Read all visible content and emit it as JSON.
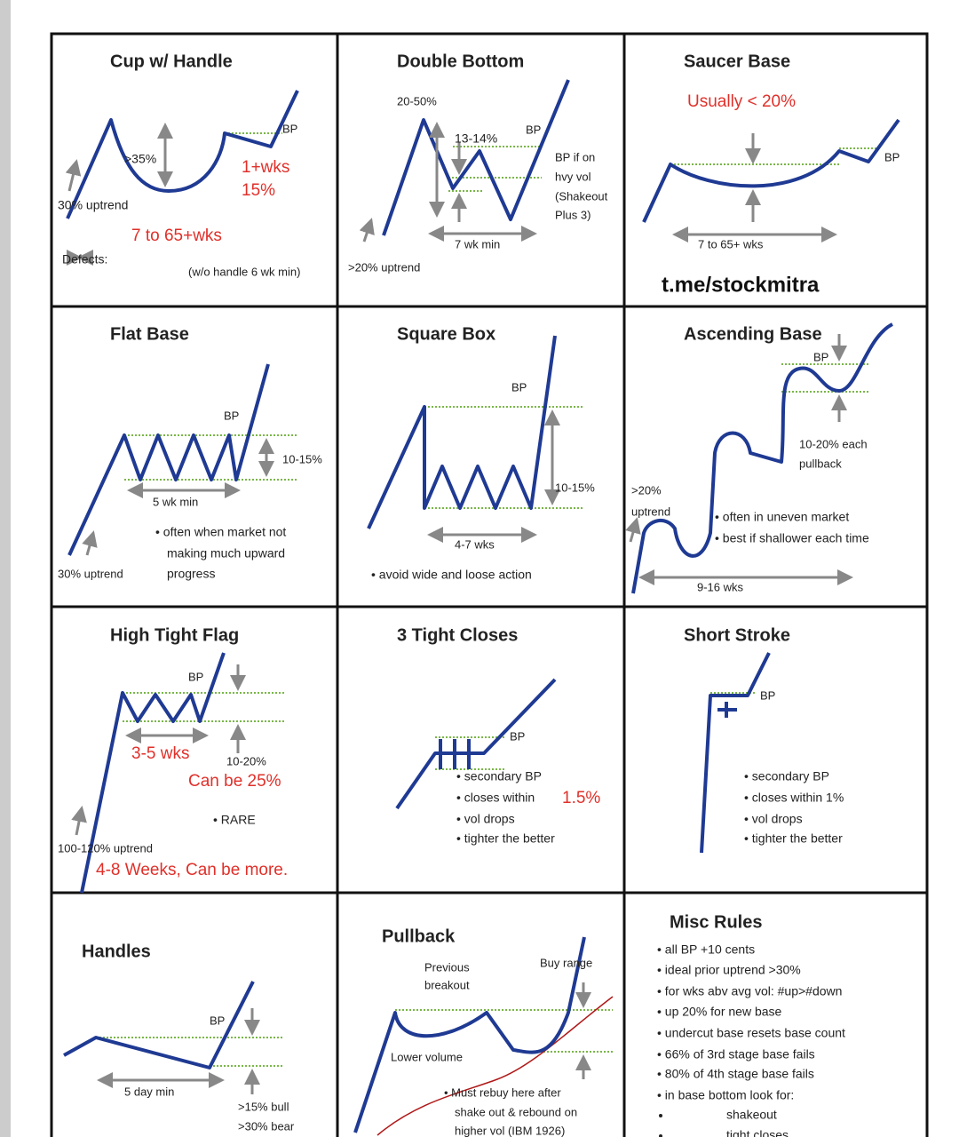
{
  "watermark": "t.me/stockmitra",
  "cells": [
    {
      "title": "Cup w/ Handle",
      "labels": [
        "BP",
        ">35%",
        "1+wks",
        "15%",
        "30% uptrend",
        "7 to 65+wks",
        "Defects:",
        "(w/o handle 6 wk min)"
      ]
    },
    {
      "title": "Double Bottom",
      "labels": [
        "20-50%",
        "13-14%",
        "BP",
        "BP if on",
        "hvy vol",
        "(Shakeout",
        "Plus 3)",
        "7 wk min",
        ">20% uptrend"
      ]
    },
    {
      "title": "Saucer Base",
      "labels": [
        "Usually < 20%",
        "BP",
        "7 to 65+ wks"
      ]
    },
    {
      "title": "Flat Base",
      "labels": [
        "BP",
        "10-15%",
        "5 wk min",
        "• often when market not",
        "making much upward",
        "progress",
        "30% uptrend"
      ]
    },
    {
      "title": "Square Box",
      "labels": [
        "BP",
        "10-15%",
        "4-7 wks",
        "• avoid wide and loose action"
      ]
    },
    {
      "title": "Ascending Base",
      "labels": [
        "BP",
        "10-20% each",
        "pullback",
        ">20%",
        "uptrend",
        "• often in uneven market",
        "• best if shallower each time",
        "9-16 wks"
      ]
    },
    {
      "title": "High Tight Flag",
      "labels": [
        "BP",
        "3-5 wks",
        "10-20%",
        "Can be 25%",
        "• RARE",
        "100-120% uptrend",
        "4-8 Weeks, Can be more."
      ]
    },
    {
      "title": "3 Tight Closes",
      "labels": [
        "BP",
        "• secondary BP",
        "• closes within",
        "1.5%",
        "• vol drops",
        "• tighter the better"
      ]
    },
    {
      "title": "Short Stroke",
      "labels": [
        "BP",
        "• secondary BP",
        "• closes within 1%",
        "• vol drops",
        "• tighter the better"
      ]
    },
    {
      "title": "Handles",
      "labels": [
        "BP",
        "5 day min",
        ">15% bull",
        ">30% bear"
      ]
    },
    {
      "title": "Pullback",
      "labels": [
        "Previous",
        "breakout",
        "Buy range",
        "Lower volume",
        "• Must rebuy here after",
        "shake out & rebound on",
        "higher vol (IBM 1926)"
      ]
    },
    {
      "title": "Misc Rules",
      "labels": [
        "• all BP +10 cents",
        "• ideal prior uptrend >30%",
        "• for wks abv avg vol: #up>#down",
        "• up 20% for new base",
        "• undercut base resets base count",
        "• 66% of 3rd stage base fails",
        "• 80% of 4th stage base fails",
        "• in base bottom look for:",
        "shakeout",
        "tight closes"
      ]
    }
  ]
}
